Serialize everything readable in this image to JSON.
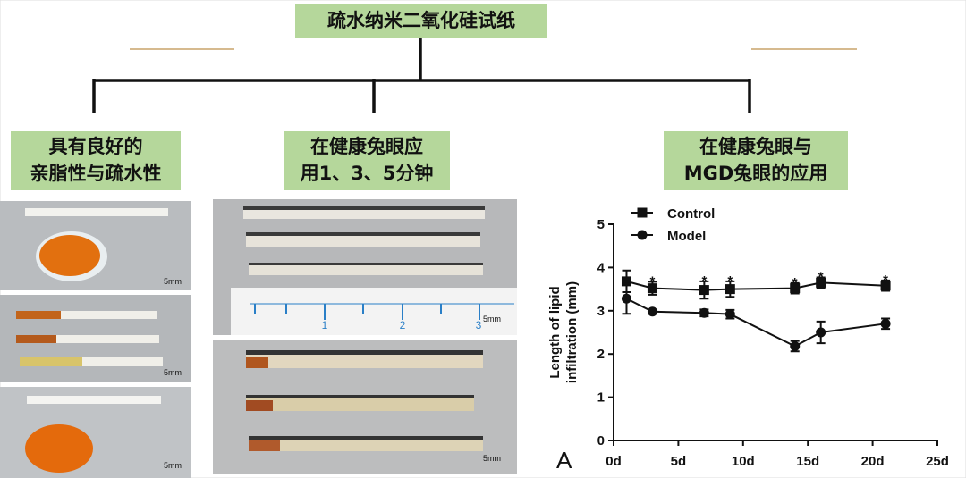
{
  "title": "疏水纳米二氧化硅试纸",
  "branches": [
    {
      "lines": [
        "具有良好的",
        "亲脂性与疏水性"
      ]
    },
    {
      "lines": [
        "在健康兔眼应",
        "用1、3、5分钟"
      ]
    },
    {
      "lines": [
        "在健康兔眼与",
        "MGD兔眼的应用"
      ]
    }
  ],
  "photos": {
    "scale_labels": [
      "5mm",
      "5mm",
      "5mm",
      "5mm",
      "5mm"
    ],
    "ruler_labels": [
      "1",
      "2",
      "3"
    ]
  },
  "chart_data": {
    "type": "line",
    "panel_label": "A",
    "y_label": [
      "Length of lipid",
      "infiltration (mm)"
    ],
    "xlim": [
      0,
      25
    ],
    "xticks": [
      {
        "value": 0,
        "label": "0d"
      },
      {
        "value": 5,
        "label": "5d"
      },
      {
        "value": 10,
        "label": "10d"
      },
      {
        "value": 15,
        "label": "15d"
      },
      {
        "value": 20,
        "label": "20d"
      },
      {
        "value": 25,
        "label": "25d"
      }
    ],
    "ylim": [
      0,
      5
    ],
    "yticks": [
      0,
      1,
      2,
      3,
      4,
      5
    ],
    "series": [
      {
        "name": "Control",
        "marker": "square",
        "color": "#111111",
        "x": [
          1,
          3,
          7,
          9,
          14,
          16,
          21
        ],
        "values": [
          3.68,
          3.52,
          3.48,
          3.5,
          3.52,
          3.65,
          3.58
        ],
        "errors": [
          0.25,
          0.15,
          0.2,
          0.18,
          0.12,
          0.12,
          0.12
        ]
      },
      {
        "name": "Model",
        "marker": "circle",
        "color": "#111111",
        "x": [
          1,
          3,
          7,
          9,
          14,
          16,
          21
        ],
        "values": [
          3.28,
          2.98,
          2.95,
          2.92,
          2.18,
          2.5,
          2.7
        ],
        "errors": [
          0.35,
          0.05,
          0.08,
          0.1,
          0.12,
          0.25,
          0.12
        ]
      }
    ],
    "significance": [
      {
        "x": 3,
        "label": "*"
      },
      {
        "x": 7,
        "label": "*"
      },
      {
        "x": 9,
        "label": "*"
      },
      {
        "x": 14,
        "label": "*"
      },
      {
        "x": 16,
        "label": "*"
      },
      {
        "x": 21,
        "label": "*"
      }
    ]
  }
}
